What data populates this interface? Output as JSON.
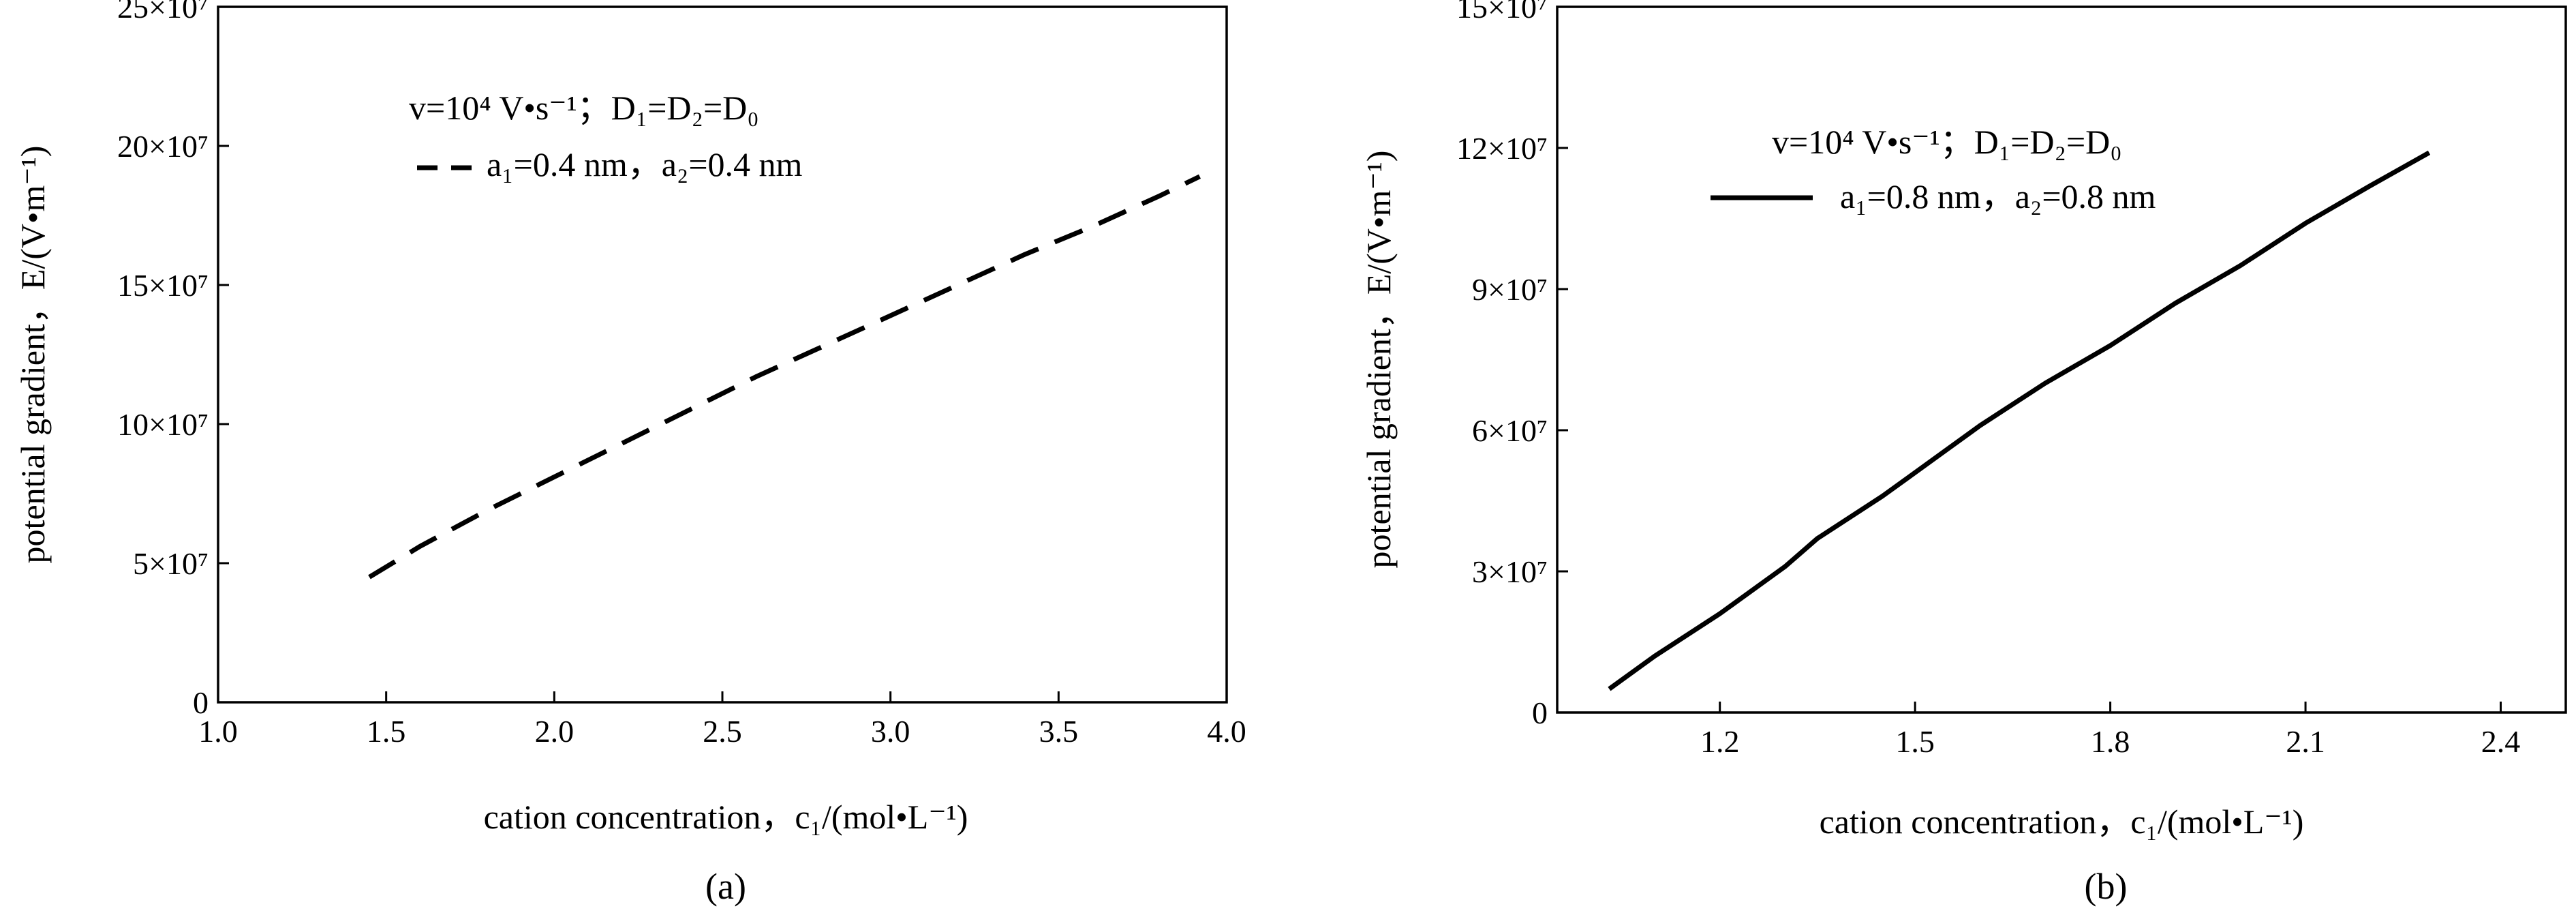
{
  "chart_data": [
    {
      "type": "line",
      "panel_label": "(a)",
      "xlabel": "cation concentration，c₁/(mol•L⁻¹)",
      "ylabel": "potential gradient，E/(V•m⁻¹)",
      "xlim": [
        1.0,
        4.0
      ],
      "ylim": [
        0,
        250000000
      ],
      "xticks": [
        1.0,
        1.5,
        2.0,
        2.5,
        3.0,
        3.5,
        4.0
      ],
      "xtick_labels": [
        "1.0",
        "1.5",
        "2.0",
        "2.5",
        "3.0",
        "3.5",
        "4.0"
      ],
      "yticks": [
        0,
        50000000,
        100000000,
        150000000,
        200000000,
        250000000
      ],
      "ytick_labels": [
        "0",
        "5×10⁷",
        "10×10⁷",
        "15×10⁷",
        "20×10⁷",
        "25×10⁷"
      ],
      "grid": false,
      "annotation": "v=10⁴ V•s⁻¹；D₁=D₂=D₀",
      "legend_position": "top-left",
      "series": [
        {
          "name": "a₁=0.4 nm，a₂=0.4 nm",
          "style": "dashed",
          "x": [
            1.45,
            1.6,
            1.8,
            2.0,
            2.2,
            2.4,
            2.6,
            2.8,
            3.0,
            3.2,
            3.4,
            3.6,
            3.8,
            3.92
          ],
          "y": [
            45000000,
            56000000,
            69000000,
            81000000,
            93000000,
            105000000,
            117000000,
            128000000,
            139000000,
            150000000,
            161000000,
            171000000,
            182000000,
            189000000
          ]
        }
      ]
    },
    {
      "type": "line",
      "panel_label": "(b)",
      "xlabel": "cation concentration，c₁/(mol•L⁻¹)",
      "ylabel": "potential gradient，E/(V•m⁻¹)",
      "xlim": [
        0.95,
        2.5
      ],
      "ylim": [
        0,
        150000000
      ],
      "xticks": [
        1.2,
        1.5,
        1.8,
        2.1,
        2.4
      ],
      "xtick_labels": [
        "1.2",
        "1.5",
        "1.8",
        "2.1",
        "2.4"
      ],
      "yticks": [
        0,
        30000000,
        60000000,
        90000000,
        120000000,
        150000000
      ],
      "ytick_labels": [
        "0",
        "3×10⁷",
        "6×10⁷",
        "9×10⁷",
        "12×10⁷",
        "15×10⁷"
      ],
      "grid": false,
      "annotation": "v=10⁴ V•s⁻¹；D₁=D₂=D₀",
      "legend_position": "top-left",
      "series": [
        {
          "name": "a₁=0.8 nm，a₂=0.8 nm",
          "style": "solid",
          "x": [
            1.03,
            1.1,
            1.2,
            1.3,
            1.35,
            1.45,
            1.55,
            1.6,
            1.7,
            1.8,
            1.9,
            2.0,
            2.1,
            2.2,
            2.29
          ],
          "y": [
            5000000,
            12000000,
            21000000,
            31000000,
            37000000,
            46000000,
            56000000,
            61000000,
            70000000,
            78000000,
            87000000,
            95000000,
            104000000,
            112000000,
            119000000
          ]
        }
      ]
    }
  ]
}
